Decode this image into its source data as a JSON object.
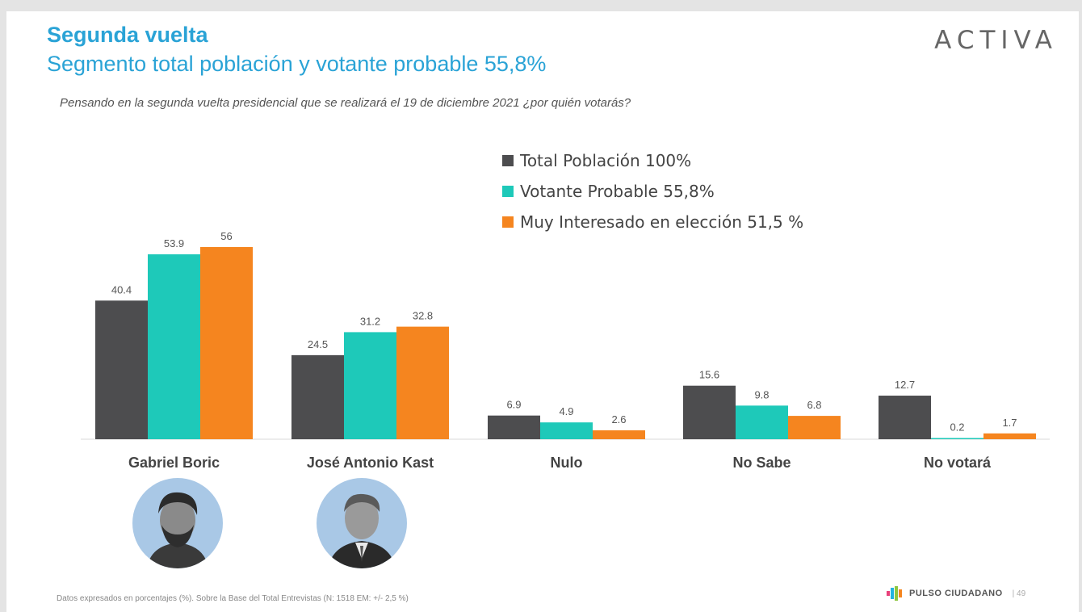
{
  "header": {
    "title": "Segunda vuelta",
    "subtitle": "Segmento total población y votante probable 55,8%",
    "brand": "ACTIVA"
  },
  "question": "Pensando en la segunda vuelta presidencial que se realizará el 19 de diciembre 2021 ¿por quién votarás?",
  "colors": {
    "total": "#4d4d4f",
    "votante": "#1ec9b9",
    "interesado": "#f5851f",
    "title": "#2aa3d6"
  },
  "chart_data": {
    "type": "bar",
    "categories": [
      "Gabriel Boric",
      "José Antonio Kast",
      "Nulo",
      "No Sabe",
      "No votará"
    ],
    "series": [
      {
        "name": "Total Población 100%",
        "values": [
          40.4,
          24.5,
          6.9,
          15.6,
          12.7
        ],
        "color": "#4d4d4f"
      },
      {
        "name": "Votante Probable 55,8%",
        "values": [
          53.9,
          31.2,
          4.9,
          9.8,
          0.2
        ],
        "color": "#1ec9b9"
      },
      {
        "name": "Muy Interesado en elección 51,5 %",
        "values": [
          56,
          32.8,
          2.6,
          6.8,
          1.7
        ],
        "color": "#f5851f"
      }
    ],
    "ylim": [
      0,
      56
    ],
    "grid": false,
    "legend": "top-center"
  },
  "avatars": [
    {
      "name_icon": "person-portrait-icon"
    },
    {
      "name_icon": "person-portrait-icon"
    }
  ],
  "footer": {
    "note": "Datos expresados en porcentajes (%). Sobre la Base del Total Entrevistas (N: 1518  EM: +/- 2,5 %)",
    "logo_text": "PULSO CIUDADANO",
    "page": "| 49"
  }
}
